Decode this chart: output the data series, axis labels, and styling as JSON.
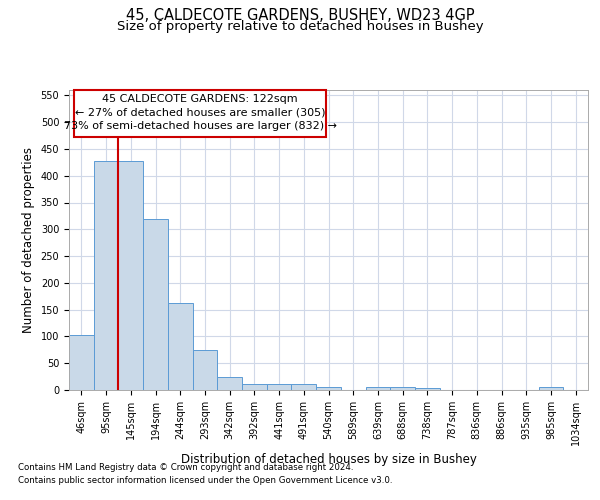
{
  "title_line1": "45, CALDECOTE GARDENS, BUSHEY, WD23 4GP",
  "title_line2": "Size of property relative to detached houses in Bushey",
  "xlabel": "Distribution of detached houses by size in Bushey",
  "ylabel": "Number of detached properties",
  "footer_line1": "Contains HM Land Registry data © Crown copyright and database right 2024.",
  "footer_line2": "Contains public sector information licensed under the Open Government Licence v3.0.",
  "annotation_line1": "45 CALDECOTE GARDENS: 122sqm",
  "annotation_line2": "← 27% of detached houses are smaller (305)",
  "annotation_line3": "73% of semi-detached houses are larger (832) →",
  "categories": [
    "46sqm",
    "95sqm",
    "145sqm",
    "194sqm",
    "244sqm",
    "293sqm",
    "342sqm",
    "392sqm",
    "441sqm",
    "491sqm",
    "540sqm",
    "589sqm",
    "639sqm",
    "688sqm",
    "738sqm",
    "787sqm",
    "836sqm",
    "886sqm",
    "935sqm",
    "985sqm",
    "1034sqm"
  ],
  "values": [
    103,
    428,
    428,
    320,
    163,
    75,
    25,
    11,
    11,
    11,
    6,
    0,
    5,
    5,
    3,
    0,
    0,
    0,
    0,
    5,
    0
  ],
  "bar_color": "#c9d9e8",
  "bar_edge_color": "#5b9bd5",
  "vline_x": 1.5,
  "vline_color": "#cc0000",
  "ylim": [
    0,
    560
  ],
  "yticks": [
    0,
    50,
    100,
    150,
    200,
    250,
    300,
    350,
    400,
    450,
    500,
    550
  ],
  "annotation_box_edge": "#cc0000",
  "grid_color": "#d0d8e8",
  "background_color": "#ffffff",
  "title_fontsize": 10.5,
  "subtitle_fontsize": 9.5,
  "tick_fontsize": 7,
  "ylabel_fontsize": 8.5,
  "xlabel_fontsize": 8.5,
  "footer_fontsize": 6.2,
  "annotation_fontsize": 8
}
